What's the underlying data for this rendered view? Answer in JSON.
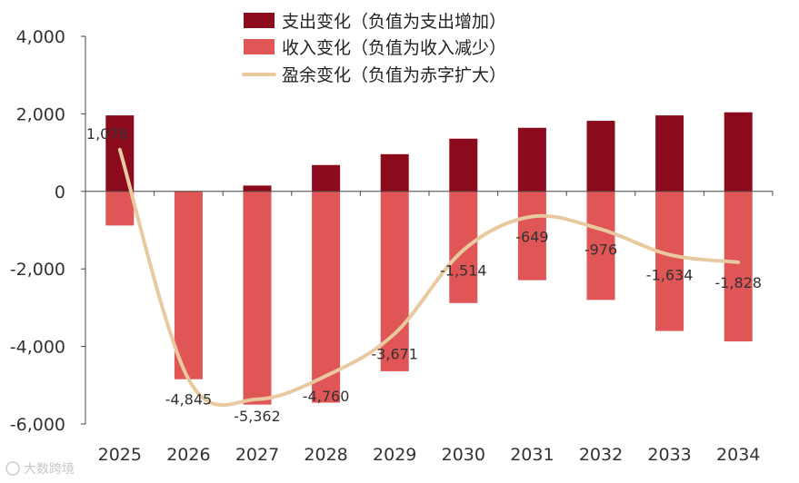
{
  "chart_data": {
    "type": "bar",
    "categories": [
      "2025",
      "2026",
      "2027",
      "2028",
      "2029",
      "2030",
      "2031",
      "2032",
      "2033",
      "2034"
    ],
    "series": [
      {
        "name": "支出变化（负值为支出增加）",
        "kind": "bar",
        "color": "#8b0a1c",
        "values": [
          1960,
          0,
          150,
          680,
          960,
          1360,
          1640,
          1820,
          1960,
          2040
        ]
      },
      {
        "name": "收入变化（负值为收入减少）",
        "kind": "bar",
        "color": "#e05555",
        "values": [
          -880,
          -4845,
          -5500,
          -5450,
          -4640,
          -2880,
          -2290,
          -2800,
          -3600,
          -3870
        ]
      },
      {
        "name": "盈余变化（负值为赤字扩大）",
        "kind": "line",
        "color": "#e8c9a0",
        "values": [
          1076,
          -4845,
          -5362,
          -4760,
          -3671,
          -1514,
          -649,
          -976,
          -1634,
          -1828
        ]
      }
    ],
    "data_labels": [
      "1,076",
      "-4,845",
      "-5,362",
      "-4,760",
      "-3,671",
      "-1,514",
      "-649",
      "-976",
      "-1,634",
      "-1,828"
    ],
    "y_ticks": [
      4000,
      2000,
      0,
      -2000,
      -4000,
      -6000
    ],
    "y_tick_labels": [
      "4,000",
      "2,000",
      "0",
      "-2,000",
      "-4,000",
      "-6,000"
    ],
    "ylim": [
      -6000,
      4000
    ],
    "title": "",
    "xlabel": "",
    "ylabel": "",
    "legend_position": "top-center"
  },
  "watermark": "大数跨境"
}
